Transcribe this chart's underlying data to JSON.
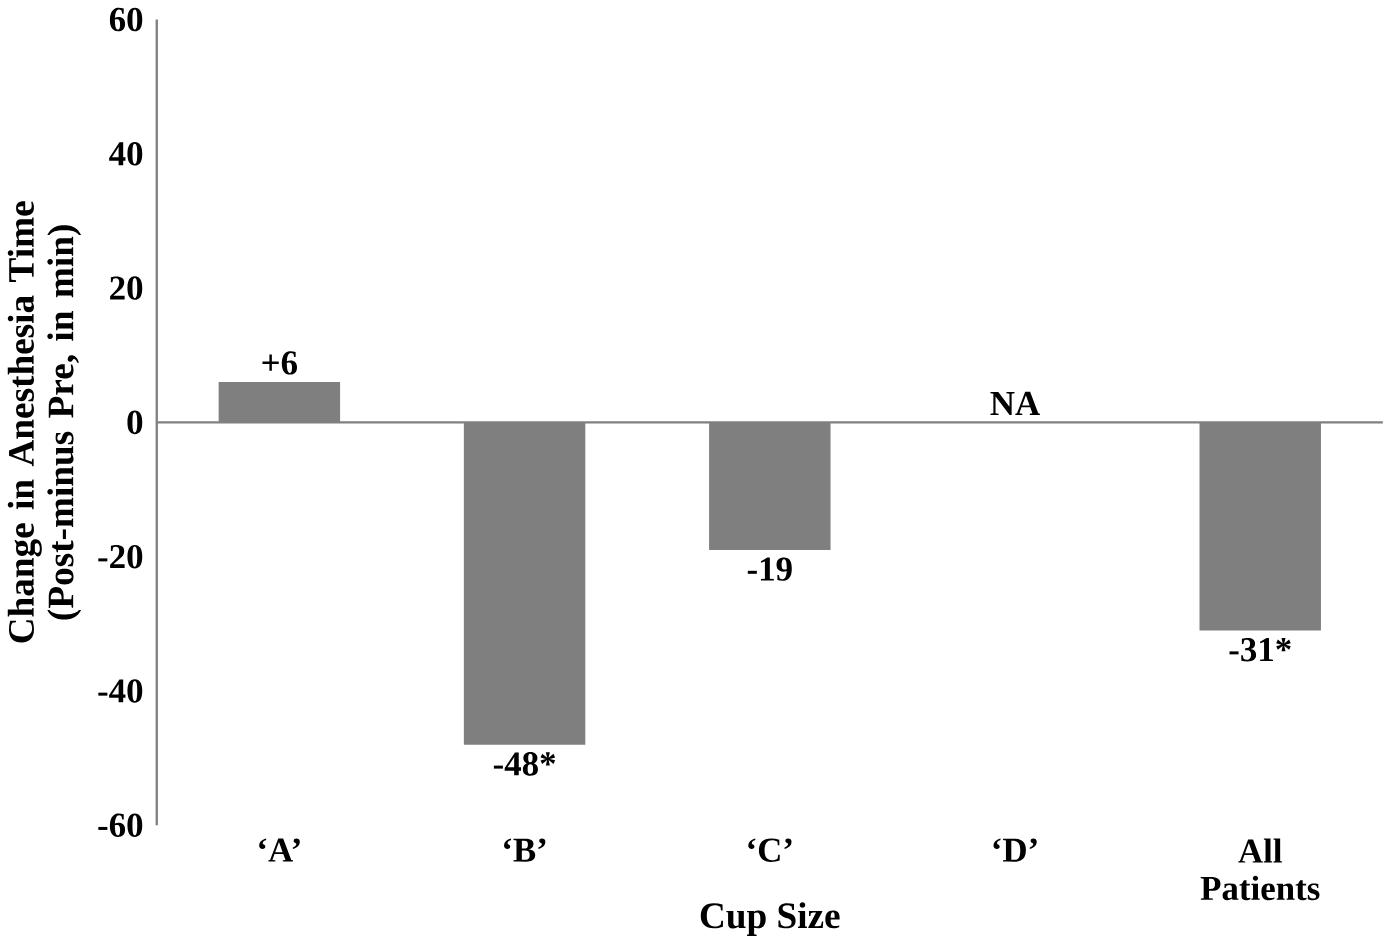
{
  "chart_data": {
    "type": "bar",
    "xlabel": "Cup Size",
    "ylabel": "Change in Anesthesia Time (Post-minus Pre, in min)",
    "categories": [
      "‘A’",
      "‘B’",
      "‘C’",
      "‘D’",
      "All Patients"
    ],
    "values": [
      6,
      -48,
      -19,
      null,
      -31
    ],
    "value_labels": [
      "+6",
      "-48*",
      "-19",
      "NA",
      "-31*"
    ],
    "color": "#7f7f7f",
    "ylim": [
      -60,
      60
    ],
    "yticks": [
      -60,
      -40,
      -20,
      0,
      20,
      40,
      60
    ]
  }
}
